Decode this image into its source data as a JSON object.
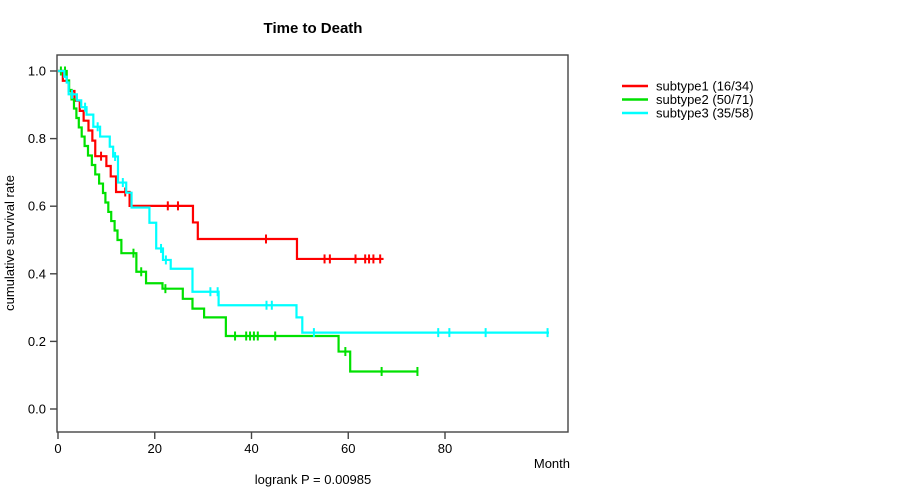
{
  "chart_data": {
    "type": "line",
    "subtype": "kaplan-meier-step",
    "title": "Time to Death",
    "xlabel": "Month",
    "ylabel": "cumulative survival rate",
    "footnote": "logrank P = 0.00985",
    "x_tick_labels": [
      "0",
      "20",
      "40",
      "60",
      "80"
    ],
    "x_tick_values": [
      0,
      20,
      40,
      60,
      80
    ],
    "y_tick_labels": [
      "0.0",
      "0.2",
      "0.4",
      "0.6",
      "0.8",
      "1.0"
    ],
    "y_tick_values": [
      0.0,
      0.2,
      0.4,
      0.6,
      0.8,
      1.0
    ],
    "xlim": [
      0,
      105
    ],
    "ylim": [
      0,
      1
    ],
    "grid": false,
    "legend_position": "right-outside",
    "series": [
      {
        "name": "subtype1",
        "legend_label": "subtype1 (16/34)",
        "events": 16,
        "n": 34,
        "color": "#ff0000",
        "steps": [
          [
            0,
            1.0
          ],
          [
            1.0,
            0.971
          ],
          [
            2.2,
            0.941
          ],
          [
            3.4,
            0.912
          ],
          [
            4.5,
            0.882
          ],
          [
            5.3,
            0.853
          ],
          [
            6.3,
            0.824
          ],
          [
            7.1,
            0.794
          ],
          [
            7.7,
            0.748
          ],
          [
            10.0,
            0.719
          ],
          [
            10.9,
            0.688
          ],
          [
            12.0,
            0.642
          ],
          [
            14.8,
            0.601
          ],
          [
            27.9,
            0.552
          ],
          [
            28.9,
            0.503
          ],
          [
            49.4,
            0.444
          ]
        ],
        "end_time": 67.3,
        "censor_times": [
          8.9,
          13.9,
          22.7,
          24.8,
          43.0,
          55.1,
          56.2,
          61.5,
          63.5,
          64.3,
          65.2,
          66.6
        ]
      },
      {
        "name": "subtype2",
        "legend_label": "subtype2 (50/71)",
        "events": 50,
        "n": 71,
        "color": "#00e100",
        "steps": [
          [
            0,
            1.0
          ],
          [
            1.8,
            0.972
          ],
          [
            2.3,
            0.944
          ],
          [
            2.8,
            0.916
          ],
          [
            3.3,
            0.889
          ],
          [
            3.8,
            0.861
          ],
          [
            4.3,
            0.833
          ],
          [
            4.9,
            0.806
          ],
          [
            5.5,
            0.778
          ],
          [
            6.2,
            0.75
          ],
          [
            7.0,
            0.722
          ],
          [
            7.7,
            0.694
          ],
          [
            8.5,
            0.667
          ],
          [
            9.3,
            0.639
          ],
          [
            9.8,
            0.611
          ],
          [
            10.4,
            0.583
          ],
          [
            11.0,
            0.556
          ],
          [
            11.7,
            0.528
          ],
          [
            12.3,
            0.5
          ],
          [
            13.1,
            0.461
          ],
          [
            16.2,
            0.406
          ],
          [
            18.2,
            0.372
          ],
          [
            21.6,
            0.356
          ],
          [
            25.8,
            0.326
          ],
          [
            27.8,
            0.297
          ],
          [
            30.2,
            0.271
          ],
          [
            34.7,
            0.216
          ],
          [
            58.0,
            0.17
          ],
          [
            60.4,
            0.111
          ]
        ],
        "end_time": 74.5,
        "censor_times": [
          0.6,
          1.45,
          15.6,
          17.2,
          22.2,
          36.6,
          38.9,
          39.7,
          40.5,
          41.3,
          44.9,
          59.4,
          66.9,
          74.3
        ]
      },
      {
        "name": "subtype3",
        "legend_label": "subtype3 (35/58)",
        "events": 35,
        "n": 58,
        "color": "#00ffff",
        "steps": [
          [
            0,
            1.0
          ],
          [
            1.3,
            0.983
          ],
          [
            1.8,
            0.966
          ],
          [
            2.2,
            0.931
          ],
          [
            3.9,
            0.913
          ],
          [
            4.8,
            0.893
          ],
          [
            5.9,
            0.871
          ],
          [
            7.3,
            0.835
          ],
          [
            8.7,
            0.806
          ],
          [
            10.7,
            0.776
          ],
          [
            11.4,
            0.747
          ],
          [
            12.4,
            0.67
          ],
          [
            14.1,
            0.64
          ],
          [
            15.2,
            0.596
          ],
          [
            18.9,
            0.551
          ],
          [
            20.3,
            0.475
          ],
          [
            21.7,
            0.441
          ],
          [
            23.3,
            0.415
          ],
          [
            27.8,
            0.347
          ],
          [
            33.2,
            0.307
          ],
          [
            49.3,
            0.271
          ],
          [
            50.5,
            0.226
          ]
        ],
        "end_time": 101.5,
        "censor_times": [
          2.9,
          5.6,
          8.2,
          11.8,
          13.4,
          21.3,
          22.3,
          31.5,
          33.0,
          43.1,
          44.2,
          52.9,
          78.6,
          80.9,
          88.4,
          101.2
        ]
      }
    ]
  }
}
